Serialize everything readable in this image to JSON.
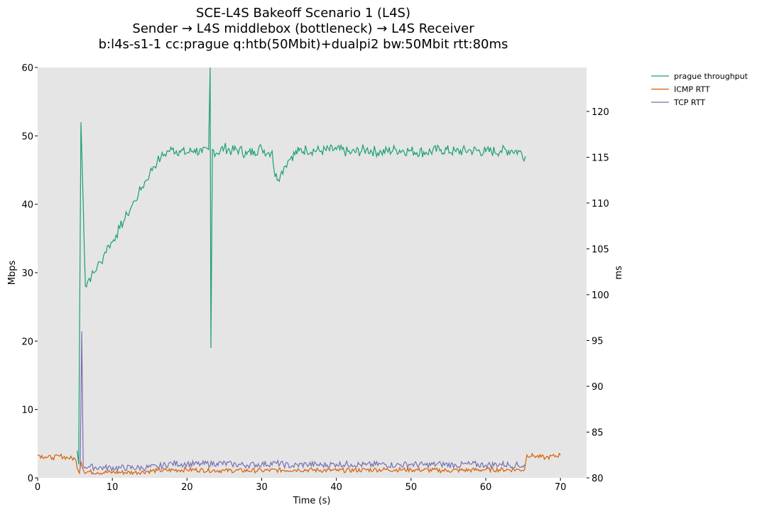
{
  "chart_data": {
    "type": "line",
    "title": "SCE-L4S Bakeoff Scenario 1 (L4S)",
    "subtitle": "Sender → L4S middlebox (bottleneck) → L4S Receiver",
    "subtitle2": "b:l4s-s1-1 cc:prague q:htb(50Mbit)+dualpi2 bw:50Mbit rtt:80ms",
    "xlabel": "Time (s)",
    "ylabel": "Mbps",
    "y2label": "ms",
    "xlim": [
      0,
      73.5
    ],
    "ylim": [
      0,
      60
    ],
    "y2lim": [
      80,
      124.8
    ],
    "xticks": [
      "0",
      "10",
      "20",
      "30",
      "40",
      "50",
      "60",
      "70"
    ],
    "yticks": [
      "0",
      "10",
      "20",
      "30",
      "40",
      "50",
      "60"
    ],
    "y2ticks": [
      "80",
      "85",
      "90",
      "95",
      "100",
      "105",
      "110",
      "115",
      "120"
    ],
    "grid": false,
    "legend_position": "outside-top-right",
    "series": [
      {
        "name": "prague throughput",
        "axis": "left",
        "color": "#1b9e77",
        "points": [
          [
            5.3,
            4
          ],
          [
            5.5,
            2
          ],
          [
            5.8,
            52
          ],
          [
            6.1,
            40
          ],
          [
            6.4,
            28
          ],
          [
            6.8,
            29
          ],
          [
            7.2,
            29.5
          ],
          [
            7.6,
            30
          ],
          [
            8,
            31
          ],
          [
            8.5,
            31.5
          ],
          [
            9,
            33
          ],
          [
            9.5,
            34
          ],
          [
            10,
            34.5
          ],
          [
            10.5,
            35.5
          ],
          [
            11,
            36.5
          ],
          [
            11.5,
            37.5
          ],
          [
            12,
            38.5
          ],
          [
            12.5,
            39.5
          ],
          [
            13,
            40.5
          ],
          [
            13.5,
            41.5
          ],
          [
            14,
            42.5
          ],
          [
            14.5,
            43.5
          ],
          [
            15,
            44.5
          ],
          [
            15.5,
            45.5
          ],
          [
            16,
            46.2
          ],
          [
            16.5,
            46.8
          ],
          [
            17,
            47.3
          ],
          [
            17.5,
            47.8
          ],
          [
            18,
            48
          ],
          [
            19,
            47.8
          ],
          [
            20,
            47.5
          ],
          [
            21,
            48
          ],
          [
            22,
            47.5
          ],
          [
            22.9,
            48
          ],
          [
            23.1,
            60
          ],
          [
            23.2,
            19
          ],
          [
            23.4,
            48
          ],
          [
            24,
            47.5
          ],
          [
            25,
            48.3
          ],
          [
            26,
            47.8
          ],
          [
            27,
            48
          ],
          [
            28,
            47.3
          ],
          [
            29,
            47.8
          ],
          [
            30,
            48.2
          ],
          [
            30.8,
            47.5
          ],
          [
            31.4,
            47.8
          ],
          [
            31.8,
            44
          ],
          [
            32.5,
            44.2
          ],
          [
            33,
            45.5
          ],
          [
            33.5,
            46.3
          ],
          [
            34,
            47
          ],
          [
            35,
            47.8
          ],
          [
            36,
            48
          ],
          [
            38,
            47.8
          ],
          [
            40,
            48
          ],
          [
            42,
            47.5
          ],
          [
            44,
            48
          ],
          [
            46,
            47.6
          ],
          [
            48,
            48
          ],
          [
            50,
            47.8
          ],
          [
            52,
            47.6
          ],
          [
            54,
            48
          ],
          [
            56,
            47.7
          ],
          [
            58,
            47.9
          ],
          [
            60,
            47.7
          ],
          [
            62,
            47.8
          ],
          [
            63.5,
            47.9
          ],
          [
            64.5,
            47.7
          ],
          [
            65.3,
            47
          ]
        ]
      },
      {
        "name": "ICMP RTT",
        "axis": "right",
        "color": "#d95f02",
        "points": [
          [
            0,
            82.5
          ],
          [
            1,
            82.3
          ],
          [
            2,
            82.2
          ],
          [
            3,
            82.4
          ],
          [
            4,
            82.2
          ],
          [
            5,
            82.1
          ],
          [
            5.6,
            80.5
          ],
          [
            5.8,
            81.8
          ],
          [
            6.2,
            80.7
          ],
          [
            8,
            80.6
          ],
          [
            10,
            80.6
          ],
          [
            13,
            80.6
          ],
          [
            16,
            80.8
          ],
          [
            20,
            80.9
          ],
          [
            25,
            80.8
          ],
          [
            30,
            80.8
          ],
          [
            35,
            80.9
          ],
          [
            40,
            80.8
          ],
          [
            45,
            80.9
          ],
          [
            50,
            80.9
          ],
          [
            55,
            80.8
          ],
          [
            60,
            80.9
          ],
          [
            64.5,
            80.9
          ],
          [
            65.2,
            80.9
          ],
          [
            65.5,
            82.5
          ],
          [
            66.5,
            82.4
          ],
          [
            68,
            82.2
          ],
          [
            70,
            82.5
          ]
        ]
      },
      {
        "name": "TCP RTT",
        "axis": "right",
        "color": "#7570b3",
        "points": [
          [
            5.7,
            81
          ],
          [
            5.9,
            96
          ],
          [
            6.1,
            81.3
          ],
          [
            7,
            81.2
          ],
          [
            9,
            81.1
          ],
          [
            11,
            81.1
          ],
          [
            14,
            81.1
          ],
          [
            16,
            81.2
          ],
          [
            18,
            81.6
          ],
          [
            20,
            81.5
          ],
          [
            22,
            81.5
          ],
          [
            24,
            81.6
          ],
          [
            26,
            81.5
          ],
          [
            28,
            81.4
          ],
          [
            30,
            81.5
          ],
          [
            32,
            81.6
          ],
          [
            34,
            81.3
          ],
          [
            36,
            81.5
          ],
          [
            38,
            81.4
          ],
          [
            40,
            81.5
          ],
          [
            42,
            81.5
          ],
          [
            44,
            81.4
          ],
          [
            46,
            81.5
          ],
          [
            48,
            81.4
          ],
          [
            50,
            81.5
          ],
          [
            52,
            81.4
          ],
          [
            54,
            81.5
          ],
          [
            56,
            81.4
          ],
          [
            58,
            81.5
          ],
          [
            60,
            81.4
          ],
          [
            62,
            81.5
          ],
          [
            64,
            81.4
          ],
          [
            65.3,
            81.3
          ]
        ]
      }
    ]
  }
}
